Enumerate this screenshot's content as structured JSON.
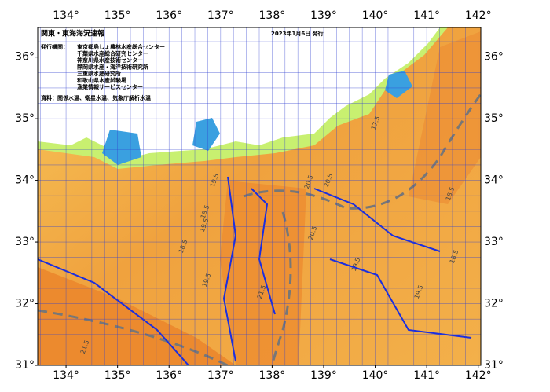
{
  "map": {
    "title": "関東・東海海況速報",
    "date": "2023年1月6日 発行",
    "issuer_label": "発行機関：",
    "issuers": [
      "東京都島しょ農林水産総合センター",
      "千葉県水産総合研究センター",
      "神奈川県水産技術センター",
      "静岡県水産・海洋技術研究所",
      "三重県水産研究所",
      "和歌山県水産試験場",
      "漁業情報サービスセンター"
    ],
    "source": "資料：関係水温、衛星水温、気象庁解析水温",
    "xlim": [
      133.45,
      142.05
    ],
    "ylim": [
      31,
      36.48
    ],
    "xticks": [
      {
        "value": 134,
        "label": "134°"
      },
      {
        "value": 135,
        "label": "135°"
      },
      {
        "value": 136,
        "label": "136°"
      },
      {
        "value": 137,
        "label": "137°"
      },
      {
        "value": 138,
        "label": "138°"
      },
      {
        "value": 139,
        "label": "139°"
      },
      {
        "value": 140,
        "label": "140°"
      },
      {
        "value": 141,
        "label": "141°"
      },
      {
        "value": 142,
        "label": "142°"
      }
    ],
    "yticks": [
      {
        "value": 31,
        "label": "31°"
      },
      {
        "value": 32,
        "label": "32°"
      },
      {
        "value": 33,
        "label": "33°"
      },
      {
        "value": 34,
        "label": "34°"
      },
      {
        "value": 35,
        "label": "35°"
      },
      {
        "value": 36,
        "label": "36°"
      }
    ],
    "contour_labels": [
      "19.5",
      "18.5",
      "20.5",
      "20.5",
      "19.5",
      "18.5",
      "21.5",
      "19.5",
      "18.5",
      "17.5",
      "19.5",
      "20.5",
      "21.5",
      "18.5",
      "19.5"
    ]
  }
}
